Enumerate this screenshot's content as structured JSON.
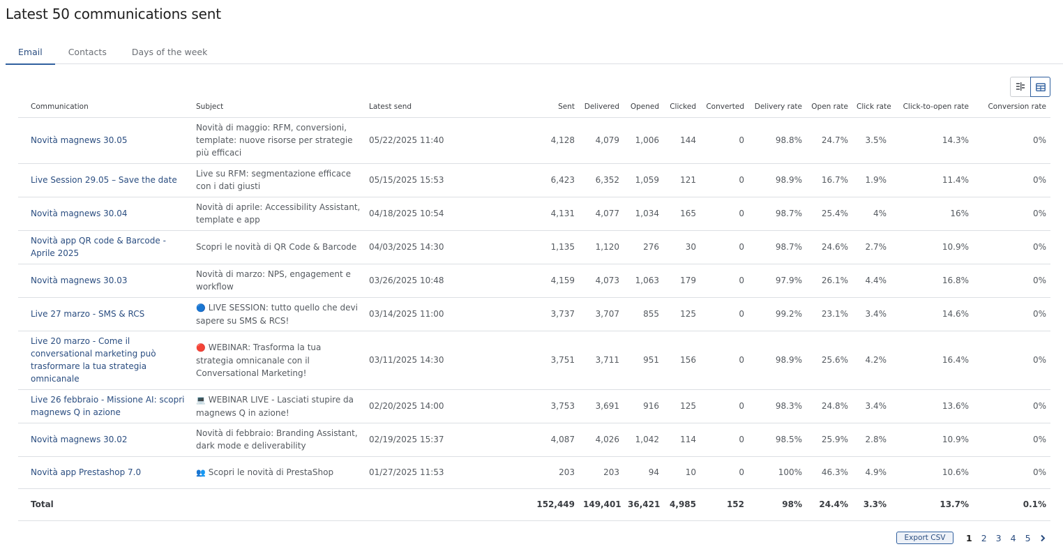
{
  "page": {
    "title": "Latest 50 communications sent"
  },
  "tabs": [
    {
      "label": "Email",
      "active": true
    },
    {
      "label": "Contacts",
      "active": false
    },
    {
      "label": "Days of the week",
      "active": false
    }
  ],
  "view_toggle": {
    "icons": [
      "column-settings-icon",
      "table-view-icon"
    ],
    "active": "table-view-icon"
  },
  "table": {
    "headers": {
      "communication": "Communication",
      "subject": "Subject",
      "latest_send": "Latest send",
      "sent": "Sent",
      "delivered": "Delivered",
      "opened": "Opened",
      "clicked": "Clicked",
      "converted": "Converted",
      "delivery_rate": "Delivery rate",
      "open_rate": "Open rate",
      "click_rate": "Click rate",
      "click_to_open_rate": "Click-to-open rate",
      "conversion_rate": "Conversion rate"
    },
    "rows": [
      {
        "communication": "Novità magnews 30.05",
        "subject_icon": "",
        "subject": "Novità di maggio: RFM, conversioni, template: nuove risorse per strategie più efficaci",
        "latest_send": "05/22/2025 11:40",
        "sent": "4,128",
        "delivered": "4,079",
        "opened": "1,006",
        "clicked": "144",
        "converted": "0",
        "delivery_rate": "98.8%",
        "open_rate": "24.7%",
        "click_rate": "3.5%",
        "click_to_open_rate": "14.3%",
        "conversion_rate": "0%"
      },
      {
        "communication": "Live Session 29.05 – Save the date",
        "subject_icon": "",
        "subject": "Live su RFM: segmentazione efficace con i dati giusti",
        "latest_send": "05/15/2025 15:53",
        "sent": "6,423",
        "delivered": "6,352",
        "opened": "1,059",
        "clicked": "121",
        "converted": "0",
        "delivery_rate": "98.9%",
        "open_rate": "16.7%",
        "click_rate": "1.9%",
        "click_to_open_rate": "11.4%",
        "conversion_rate": "0%"
      },
      {
        "communication": "Novità magnews 30.04",
        "subject_icon": "",
        "subject": "Novità di aprile: Accessibility Assistant, template e app",
        "latest_send": "04/18/2025 10:54",
        "sent": "4,131",
        "delivered": "4,077",
        "opened": "1,034",
        "clicked": "165",
        "converted": "0",
        "delivery_rate": "98.7%",
        "open_rate": "25.4%",
        "click_rate": "4%",
        "click_to_open_rate": "16%",
        "conversion_rate": "0%"
      },
      {
        "communication": "Novità app QR code & Barcode - Aprile 2025",
        "subject_icon": "",
        "subject": "Scopri le novità di QR Code & Barcode",
        "latest_send": "04/03/2025 14:30",
        "sent": "1,135",
        "delivered": "1,120",
        "opened": "276",
        "clicked": "30",
        "converted": "0",
        "delivery_rate": "98.7%",
        "open_rate": "24.6%",
        "click_rate": "2.7%",
        "click_to_open_rate": "10.9%",
        "conversion_rate": "0%"
      },
      {
        "communication": "Novità magnews 30.03",
        "subject_icon": "",
        "subject": "Novità di marzo: NPS, engagement e workflow",
        "latest_send": "03/26/2025 10:48",
        "sent": "4,159",
        "delivered": "4,073",
        "opened": "1,063",
        "clicked": "179",
        "converted": "0",
        "delivery_rate": "97.9%",
        "open_rate": "26.1%",
        "click_rate": "4.4%",
        "click_to_open_rate": "16.8%",
        "conversion_rate": "0%"
      },
      {
        "communication": "Live 27 marzo - SMS & RCS",
        "subject_icon": "🔵",
        "subject": "LIVE SESSION: tutto quello che devi sapere su SMS & RCS!",
        "latest_send": "03/14/2025 11:00",
        "sent": "3,737",
        "delivered": "3,707",
        "opened": "855",
        "clicked": "125",
        "converted": "0",
        "delivery_rate": "99.2%",
        "open_rate": "23.1%",
        "click_rate": "3.4%",
        "click_to_open_rate": "14.6%",
        "conversion_rate": "0%"
      },
      {
        "communication": "Live 20 marzo - Come il conversational marketing può trasformare la tua strategia omnicanale",
        "subject_icon": "🔴",
        "subject": "WEBINAR: Trasforma la tua strategia omnicanale con il Conversational Marketing!",
        "latest_send": "03/11/2025 14:30",
        "sent": "3,751",
        "delivered": "3,711",
        "opened": "951",
        "clicked": "156",
        "converted": "0",
        "delivery_rate": "98.9%",
        "open_rate": "25.6%",
        "click_rate": "4.2%",
        "click_to_open_rate": "16.4%",
        "conversion_rate": "0%"
      },
      {
        "communication": "Live 26 febbraio - Missione AI: scopri magnews Q in azione",
        "subject_icon": "💻",
        "subject": "WEBINAR LIVE - Lasciati stupire da magnews Q in azione!",
        "latest_send": "02/20/2025 14:00",
        "sent": "3,753",
        "delivered": "3,691",
        "opened": "916",
        "clicked": "125",
        "converted": "0",
        "delivery_rate": "98.3%",
        "open_rate": "24.8%",
        "click_rate": "3.4%",
        "click_to_open_rate": "13.6%",
        "conversion_rate": "0%"
      },
      {
        "communication": "Novità magnews 30.02",
        "subject_icon": "",
        "subject": "Novità di febbraio: Branding Assistant, dark mode e deliverability",
        "latest_send": "02/19/2025 15:37",
        "sent": "4,087",
        "delivered": "4,026",
        "opened": "1,042",
        "clicked": "114",
        "converted": "0",
        "delivery_rate": "98.5%",
        "open_rate": "25.9%",
        "click_rate": "2.8%",
        "click_to_open_rate": "10.9%",
        "conversion_rate": "0%"
      },
      {
        "communication": "Novità app Prestashop 7.0",
        "subject_icon": "👥",
        "subject": "Scopri le novità di PrestaShop",
        "latest_send": "01/27/2025 11:53",
        "sent": "203",
        "delivered": "203",
        "opened": "94",
        "clicked": "10",
        "converted": "0",
        "delivery_rate": "100%",
        "open_rate": "46.3%",
        "click_rate": "4.9%",
        "click_to_open_rate": "10.6%",
        "conversion_rate": "0%"
      }
    ],
    "total": {
      "label": "Total",
      "sent": "152,449",
      "delivered": "149,401",
      "opened": "36,421",
      "clicked": "4,985",
      "converted": "152",
      "delivery_rate": "98%",
      "open_rate": "24.4%",
      "click_rate": "3.3%",
      "click_to_open_rate": "13.7%",
      "conversion_rate": "0.1%"
    }
  },
  "footer": {
    "export_label": "Export CSV",
    "pages": [
      "1",
      "2",
      "3",
      "4",
      "5"
    ],
    "current_page": "1",
    "next_icon": "chevron-right-icon"
  },
  "colors": {
    "link": "#2a4d80",
    "accent": "#2f5f9e",
    "border": "#dcdfe3"
  }
}
